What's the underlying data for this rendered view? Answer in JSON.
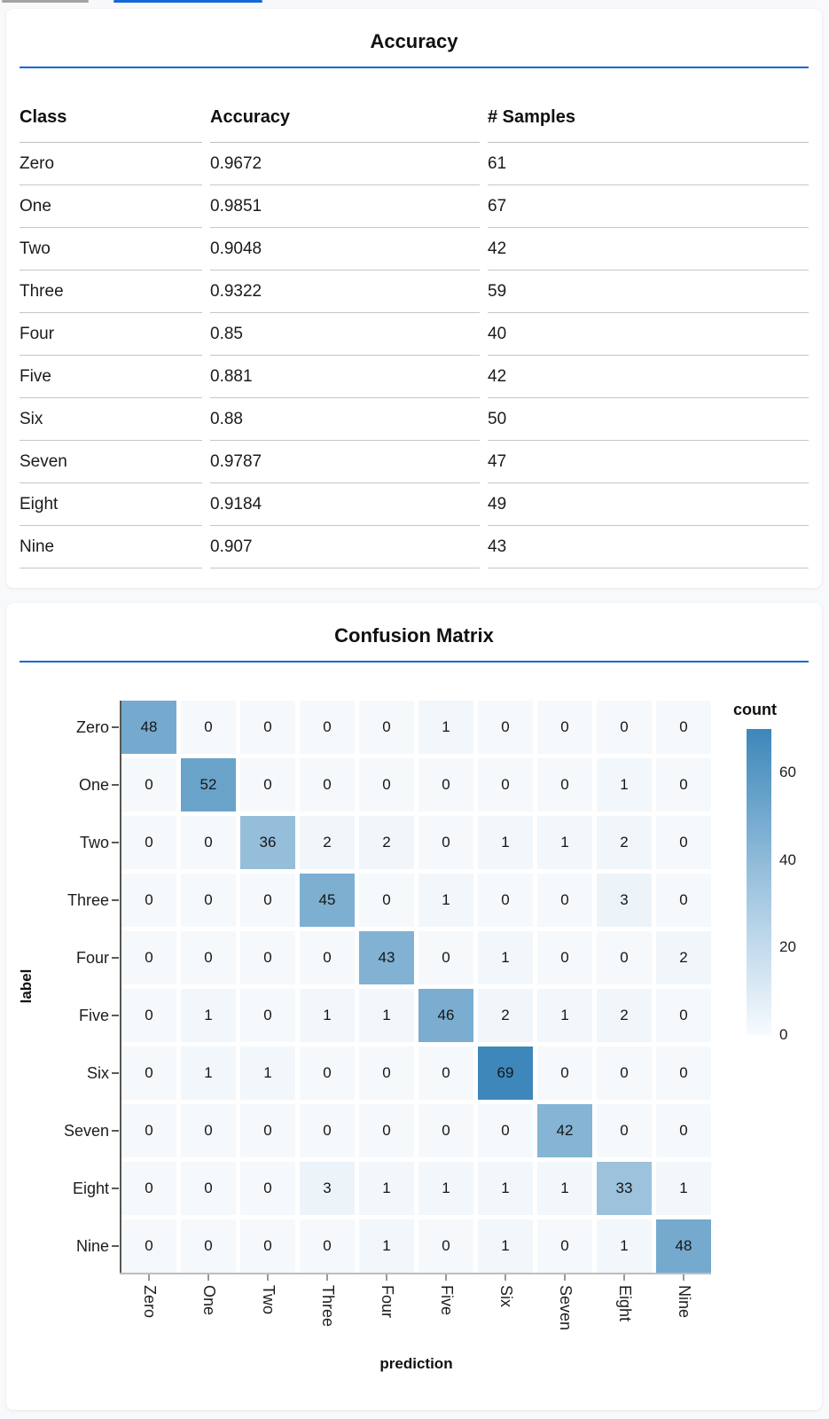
{
  "colors": {
    "accent_blue": "#1667d9",
    "tab_indicator_inactive": "#a3a3a3",
    "page_background": "#f8f9fa",
    "card_background": "#ffffff",
    "table_divider": "#c6c6c6",
    "heatmap_min_color": "#f5f9fc",
    "heatmap_max_color": "#3d87ba"
  },
  "chart_data": [
    {
      "type": "table",
      "title": "Accuracy",
      "columns": [
        "Class",
        "Accuracy",
        "# Samples"
      ],
      "rows": [
        [
          "Zero",
          "0.9672",
          "61"
        ],
        [
          "One",
          "0.9851",
          "67"
        ],
        [
          "Two",
          "0.9048",
          "42"
        ],
        [
          "Three",
          "0.9322",
          "59"
        ],
        [
          "Four",
          "0.85",
          "40"
        ],
        [
          "Five",
          "0.881",
          "42"
        ],
        [
          "Six",
          "0.88",
          "50"
        ],
        [
          "Seven",
          "0.9787",
          "47"
        ],
        [
          "Eight",
          "0.9184",
          "49"
        ],
        [
          "Nine",
          "0.907",
          "43"
        ]
      ]
    },
    {
      "type": "heatmap",
      "title": "Confusion Matrix",
      "xlabel": "prediction",
      "ylabel": "label",
      "categories": [
        "Zero",
        "One",
        "Two",
        "Three",
        "Four",
        "Five",
        "Six",
        "Seven",
        "Eight",
        "Nine"
      ],
      "matrix": [
        [
          48,
          0,
          0,
          0,
          0,
          1,
          0,
          0,
          0,
          0
        ],
        [
          0,
          52,
          0,
          0,
          0,
          0,
          0,
          0,
          1,
          0
        ],
        [
          0,
          0,
          36,
          2,
          2,
          0,
          1,
          1,
          2,
          0
        ],
        [
          0,
          0,
          0,
          45,
          0,
          1,
          0,
          0,
          3,
          0
        ],
        [
          0,
          0,
          0,
          0,
          43,
          0,
          1,
          0,
          0,
          2
        ],
        [
          0,
          1,
          0,
          1,
          1,
          46,
          2,
          1,
          2,
          0
        ],
        [
          0,
          1,
          1,
          0,
          0,
          0,
          69,
          0,
          0,
          0
        ],
        [
          0,
          0,
          0,
          0,
          0,
          0,
          0,
          42,
          0,
          0
        ],
        [
          0,
          0,
          0,
          3,
          1,
          1,
          1,
          1,
          33,
          1
        ],
        [
          0,
          0,
          0,
          0,
          1,
          0,
          1,
          0,
          1,
          48
        ]
      ],
      "color_domain": [
        0,
        69
      ],
      "grid": false,
      "legend_position": "right",
      "legend": {
        "title": "count",
        "ticks": [
          60,
          40,
          20,
          0
        ],
        "domain": [
          0,
          70
        ]
      }
    }
  ]
}
